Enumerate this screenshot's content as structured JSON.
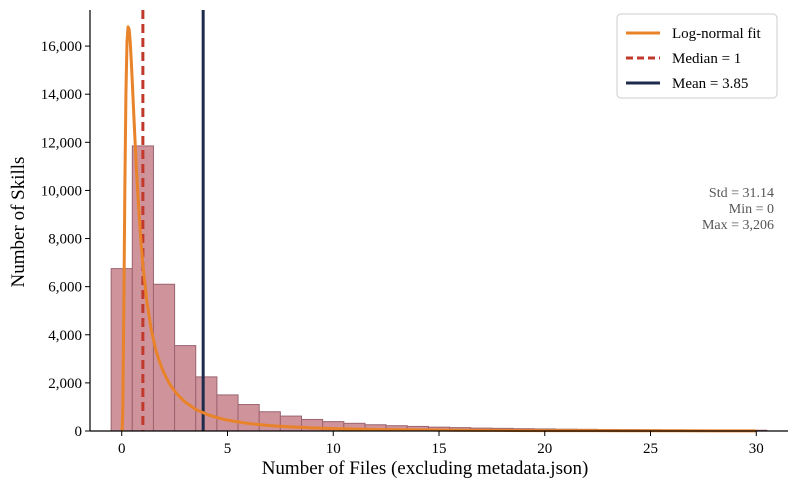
{
  "chart_data": {
    "type": "bar",
    "xlabel": "Number of Files (excluding metadata.json)",
    "ylabel": "Number of Skills",
    "xlim": [
      -1.5,
      31.5
    ],
    "ylim": [
      0,
      17500
    ],
    "xticks": [
      0,
      5,
      10,
      15,
      20,
      25,
      30
    ],
    "yticks": [
      0,
      2000,
      4000,
      6000,
      8000,
      10000,
      12000,
      14000,
      16000
    ],
    "ytick_labels": [
      "0",
      "2,000",
      "4,000",
      "6,000",
      "8,000",
      "10,000",
      "12,000",
      "14,000",
      "16,000"
    ],
    "bin_width": 1.0,
    "bins_start": -0.5,
    "histogram": {
      "name": "Skills",
      "bin_centers": [
        0,
        1,
        2,
        3,
        4,
        5,
        6,
        7,
        8,
        9,
        10,
        11,
        12,
        13,
        14,
        15,
        16,
        17,
        18,
        19,
        20,
        21,
        22,
        23,
        24,
        25,
        26,
        27,
        28,
        29,
        30
      ],
      "values": [
        6750,
        11850,
        6100,
        3550,
        2250,
        1500,
        1100,
        800,
        620,
        480,
        390,
        320,
        260,
        220,
        190,
        160,
        140,
        120,
        110,
        95,
        85,
        75,
        70,
        60,
        55,
        50,
        45,
        42,
        38,
        35,
        32
      ]
    },
    "fit": {
      "name": "Log-normal fit",
      "x": [
        0.02,
        0.05,
        0.1,
        0.15,
        0.2,
        0.25,
        0.3,
        0.35,
        0.4,
        0.45,
        0.5,
        0.6,
        0.7,
        0.8,
        0.9,
        1.0,
        1.2,
        1.4,
        1.6,
        1.8,
        2.0,
        2.3,
        2.6,
        3.0,
        3.5,
        4.0,
        4.5,
        5.0,
        6.0,
        7.0,
        8.0,
        9.0,
        10.0,
        12.0,
        14.0,
        16.0,
        18.0,
        20.0,
        22.0,
        24.0,
        26.0,
        28.0,
        30.0
      ],
      "y": [
        0,
        800,
        5200,
        10300,
        14100,
        16200,
        16800,
        16700,
        16200,
        15400,
        14500,
        12600,
        10800,
        9300,
        8000,
        6900,
        5300,
        4200,
        3400,
        2850,
        2400,
        1900,
        1550,
        1200,
        900,
        700,
        560,
        450,
        310,
        225,
        170,
        130,
        100,
        65,
        45,
        32,
        24,
        18,
        14,
        11,
        9,
        7,
        6
      ]
    },
    "lines": [
      {
        "name": "Median = 1",
        "x": 1,
        "style": "dashed",
        "color": "#c0392b"
      },
      {
        "name": "Mean = 3.85",
        "x": 3.85,
        "style": "solid",
        "color": "#1f2b4d"
      }
    ],
    "legend_placement": "top-right",
    "grid": false,
    "stats_text": [
      "Std = 31.14",
      "Min = 0",
      "Max = 3,206"
    ],
    "colors": {
      "bar_fill": "#cf939b",
      "bar_edge": "#9b6470",
      "fit": "#e8832a",
      "median": "#c0392b",
      "mean": "#1f2b4d",
      "stats_text": "#555555"
    }
  }
}
